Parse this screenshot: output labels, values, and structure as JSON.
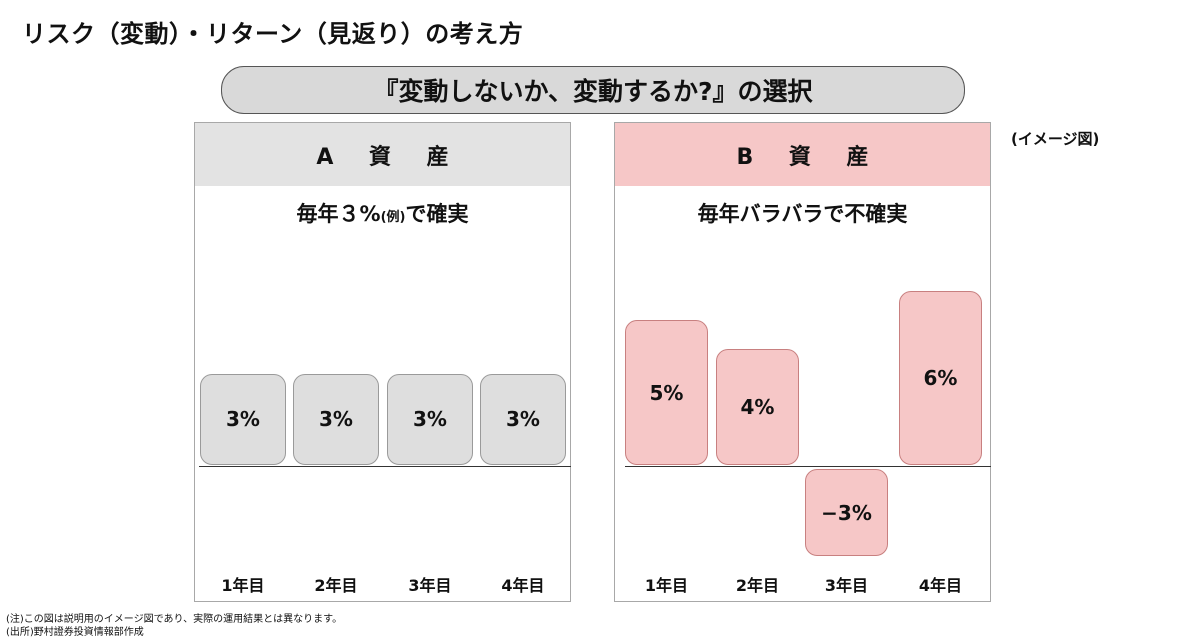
{
  "title": "リスク（変動）・リターン（見返り）の考え方",
  "subtitle": "『変動しないか、変動するか?』の選択",
  "image_note": "(イメージ図)",
  "panel_a": {
    "header": "A 資 産",
    "caption_main": "毎年３%",
    "caption_small": "(例)",
    "caption_tail": "で確実",
    "bars": [
      "3%",
      "3%",
      "3%",
      "3%"
    ],
    "years": [
      "1年目",
      "2年目",
      "3年目",
      "4年目"
    ]
  },
  "panel_b": {
    "header": "B 資 産",
    "caption": "毎年バラバラで不確実",
    "bars": [
      "5%",
      "4%",
      "−3%",
      "6%"
    ],
    "years": [
      "1年目",
      "2年目",
      "3年目",
      "4年目"
    ]
  },
  "chart_data": [
    {
      "type": "bar",
      "categories": [
        "1年目",
        "2年目",
        "3年目",
        "4年目"
      ],
      "values": [
        3,
        3,
        3,
        3
      ],
      "title": "A 資 産"
    },
    {
      "type": "bar",
      "categories": [
        "1年目",
        "2年目",
        "3年目",
        "4年目"
      ],
      "values": [
        5,
        4,
        -3,
        6
      ],
      "title": "B 資 産"
    }
  ],
  "footnotes": {
    "note": "(注)この図は説明用のイメージ図であり、実際の運用結果とは異なります。",
    "source": "(出所)野村證券投資情報部作成"
  }
}
